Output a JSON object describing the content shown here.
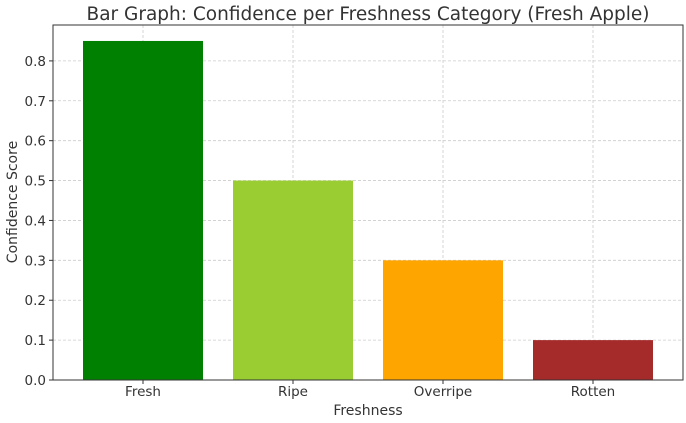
{
  "chart_data": {
    "type": "bar",
    "title": "Bar Graph: Confidence per Freshness Category (Fresh Apple)",
    "xlabel": "Freshness",
    "ylabel": "Confidence Score",
    "categories": [
      "Fresh",
      "Ripe",
      "Overripe",
      "Rotten"
    ],
    "values": [
      0.85,
      0.5,
      0.3,
      0.1
    ],
    "colors": [
      "#008000",
      "#9acd32",
      "#ffa500",
      "#a52a2a"
    ],
    "ylim": [
      0,
      0.89
    ],
    "yticks": [
      "0.0",
      "0.1",
      "0.2",
      "0.3",
      "0.4",
      "0.5",
      "0.6",
      "0.7",
      "0.8"
    ],
    "grid": true,
    "legend": "none"
  }
}
